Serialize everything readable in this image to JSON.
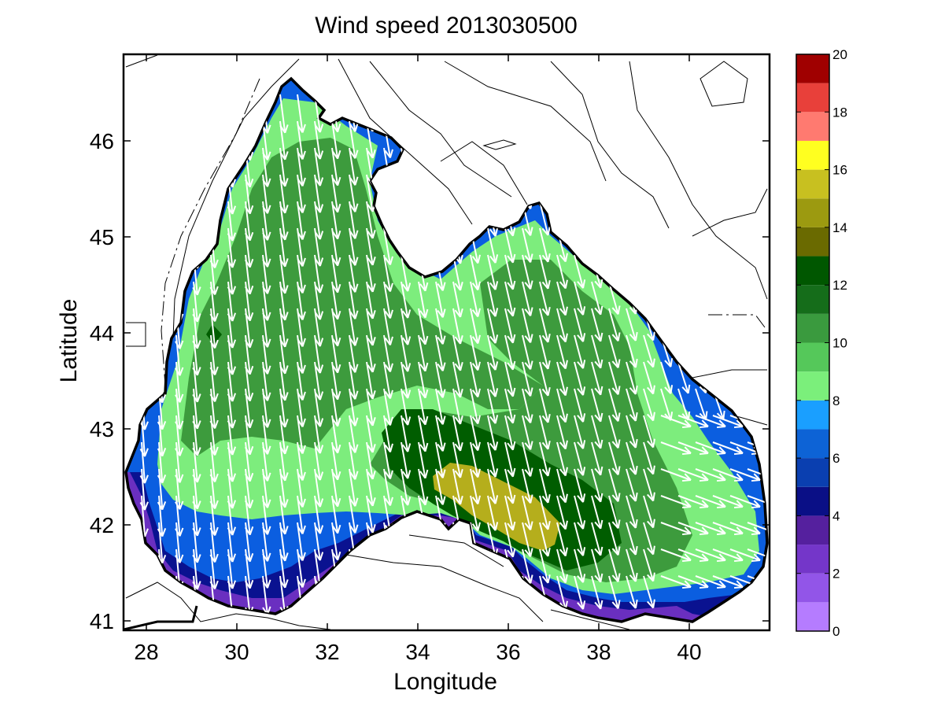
{
  "title": "Wind speed 2013030500",
  "xlabel": "Longitude",
  "ylabel": "Latitude",
  "chart_data": {
    "type": "heatmap",
    "title": "Wind speed 2013030500",
    "xlabel": "Longitude",
    "ylabel": "Latitude",
    "xlim": [
      27.5,
      41.7
    ],
    "ylim": [
      40.9,
      46.9
    ],
    "xticks": [
      "28",
      "30",
      "32",
      "34",
      "36",
      "38",
      "40"
    ],
    "yticks": [
      "41",
      "42",
      "43",
      "44",
      "45",
      "46"
    ],
    "colorbar": {
      "range": [
        0,
        20
      ],
      "ticks": [
        "0",
        "2",
        "4",
        "6",
        "8",
        "10",
        "12",
        "14",
        "16",
        "18",
        "20"
      ],
      "bands": [
        {
          "from": 0,
          "to": 1,
          "color": "#b57cff"
        },
        {
          "from": 1,
          "to": 2,
          "color": "#9255e8"
        },
        {
          "from": 2,
          "to": 3,
          "color": "#7436c9"
        },
        {
          "from": 3,
          "to": 4,
          "color": "#55209e"
        },
        {
          "from": 4,
          "to": 5,
          "color": "#0a0f86"
        },
        {
          "from": 5,
          "to": 6,
          "color": "#0a3fb0"
        },
        {
          "from": 6,
          "to": 7,
          "color": "#0d63d6"
        },
        {
          "from": 7,
          "to": 8,
          "color": "#1a9fff"
        },
        {
          "from": 8,
          "to": 9,
          "color": "#7bef7b"
        },
        {
          "from": 9,
          "to": 10,
          "color": "#55c85a"
        },
        {
          "from": 10,
          "to": 11,
          "color": "#3a9a3e"
        },
        {
          "from": 11,
          "to": 12,
          "color": "#156d1a"
        },
        {
          "from": 12,
          "to": 13,
          "color": "#005700"
        },
        {
          "from": 13,
          "to": 14,
          "color": "#6a6a00"
        },
        {
          "from": 14,
          "to": 15,
          "color": "#9c9a10"
        },
        {
          "from": 15,
          "to": 16,
          "color": "#c8c020"
        },
        {
          "from": 16,
          "to": 17,
          "color": "#ffff20"
        },
        {
          "from": 17,
          "to": 18,
          "color": "#ff7a70"
        },
        {
          "from": 18,
          "to": 19,
          "color": "#e8403a"
        },
        {
          "from": 19,
          "to": 20,
          "color": "#a00000"
        }
      ]
    },
    "contour_fill_colors": {
      "land": "#ffffff",
      "lt3": "#6a2fc0",
      "4_5": "#0a1290",
      "5_7": "#0b5ee0",
      "8_9": "#7ded7d",
      "9_10": "#3d9b3d",
      "11_12": "#005d00",
      "14_15": "#b5ae1c"
    },
    "wind_field": {
      "arrow_color": "#ffffff",
      "prevailing_direction": "north-to-south (northerly wind)"
    }
  }
}
